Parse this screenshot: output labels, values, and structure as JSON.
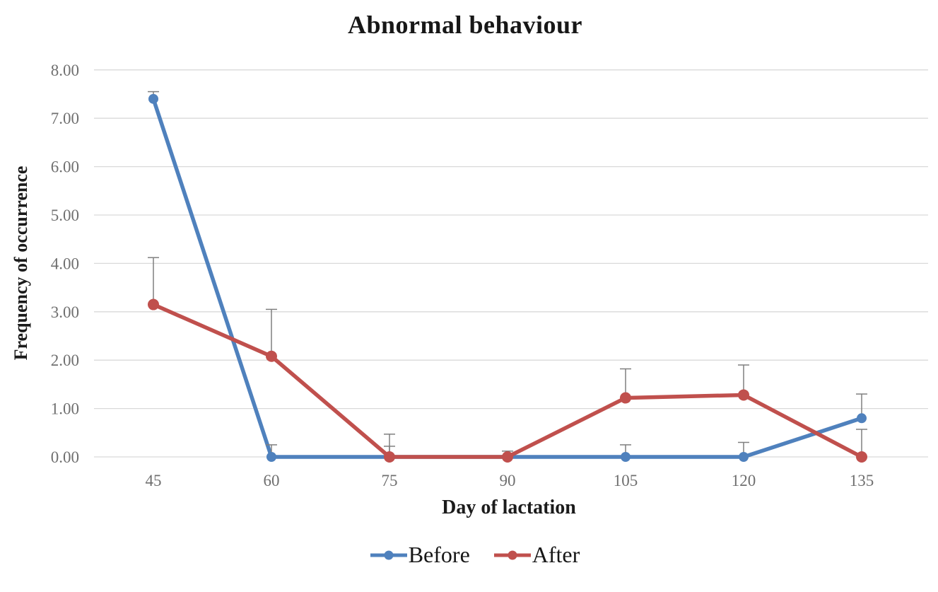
{
  "chart_data": {
    "type": "line",
    "title": "Abnormal behaviour",
    "xlabel": "Day of lactation",
    "ylabel": "Frequency of occurrence",
    "x": [
      45,
      60,
      75,
      90,
      105,
      120,
      135
    ],
    "series": [
      {
        "name": "Before",
        "color": "#4f81bd",
        "values": [
          7.4,
          0.0,
          0.0,
          0.0,
          0.0,
          0.0,
          0.8
        ],
        "error_up": [
          0.15,
          0.25,
          0.22,
          0.0,
          0.25,
          0.3,
          0.5
        ]
      },
      {
        "name": "After",
        "color": "#c0504d",
        "values": [
          3.15,
          2.08,
          0.0,
          0.0,
          1.22,
          1.28,
          0.0
        ],
        "error_up": [
          0.97,
          0.97,
          0.47,
          0.12,
          0.6,
          0.62,
          0.57
        ]
      }
    ],
    "ylim": [
      0,
      8
    ],
    "ytick_step": 1,
    "ytick_format": "two_decimals",
    "grid": true,
    "legend_position": "bottom",
    "grid_color": "#d9d9d9",
    "error_bar_color": "#7f7f7f",
    "tick_label_color": "#6f6f6f"
  }
}
